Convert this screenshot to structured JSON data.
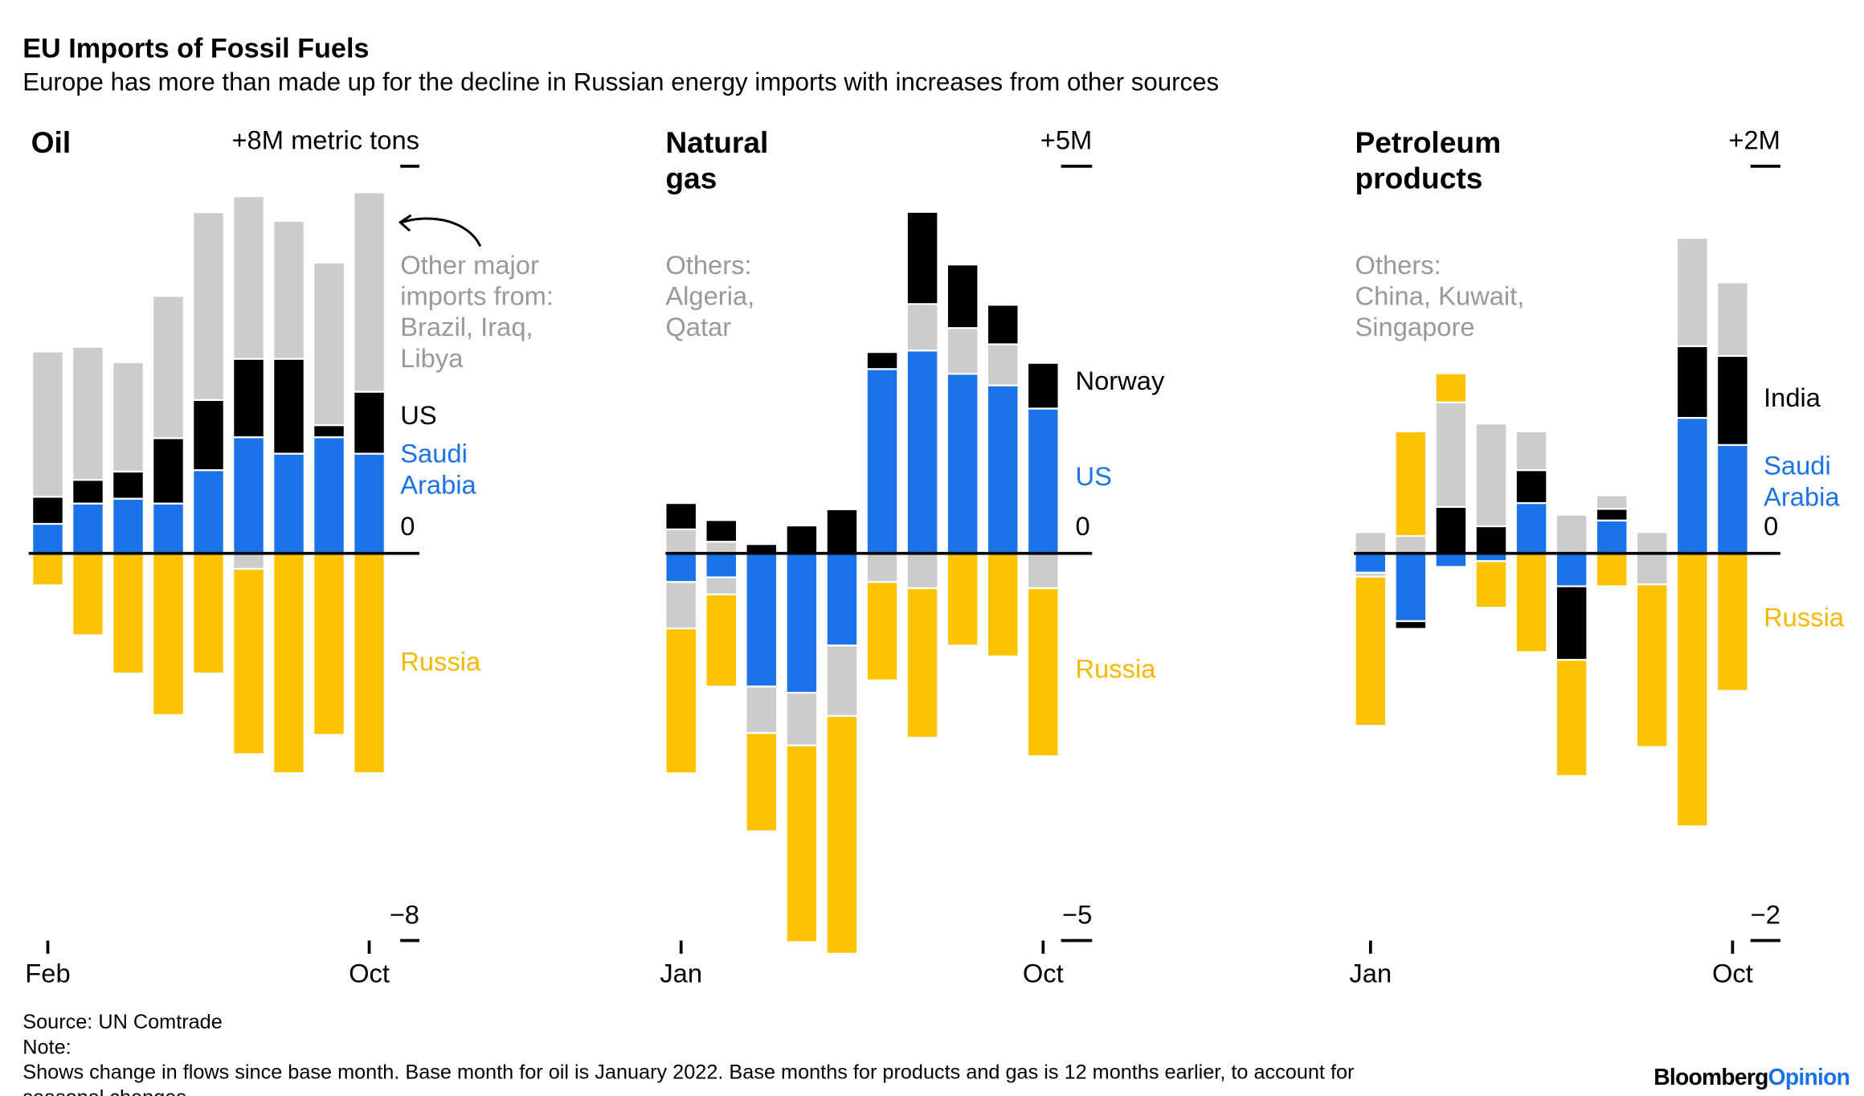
{
  "title": "EU Imports of Fossil Fuels",
  "subtitle": "Europe has more than made up for the decline in Russian energy imports with increases from other sources",
  "source": "Source: UN Comtrade",
  "note": "Note: Shows change in flows since base month. Base month for oil is January 2022. Base months for products and gas is 12 months earlier, to account for seasonal changes.",
  "logo": {
    "first": "Bloomberg",
    "second": "Opinion"
  },
  "chart_data": [
    {
      "type": "bar",
      "stacked": true,
      "title": "Oil",
      "categories": [
        "Feb",
        null,
        null,
        null,
        null,
        null,
        null,
        null,
        "Oct"
      ],
      "ylim": [
        -8,
        8
      ],
      "yticks": [
        {
          "value": 8,
          "label": "+8M metric tons"
        },
        0,
        {
          "value": -8,
          "label": "−8"
        }
      ],
      "series": [
        {
          "name": "Saudi Arabia",
          "color": "#1a73e8",
          "values": [
            0.61,
            1.03,
            1.13,
            1.03,
            1.72,
            2.4,
            2.06,
            2.4,
            2.06
          ]
        },
        {
          "name": "US",
          "color": "#000000",
          "values": [
            0.56,
            0.49,
            0.56,
            1.35,
            1.45,
            1.62,
            1.96,
            0.25,
            1.28
          ]
        },
        {
          "name": "Other major imports from: Brazil, Iraq, Libya",
          "color": "#cccccc",
          "values": [
            3.0,
            2.75,
            2.26,
            2.94,
            3.88,
            3.36,
            2.85,
            3.36,
            4.12
          ]
        },
        {
          "color": "#cccccc",
          "values": [
            0,
            0,
            0,
            0,
            0,
            -0.32,
            0,
            0,
            0
          ]
        },
        {
          "name": "Russia",
          "color": "#fdc300",
          "values": [
            -0.66,
            -1.69,
            -2.48,
            -3.34,
            -2.48,
            -3.83,
            -4.54,
            -3.75,
            -4.54
          ]
        }
      ]
    },
    {
      "type": "bar",
      "stacked": true,
      "title": "Natural gas",
      "categories": [
        "Jan",
        null,
        null,
        null,
        null,
        null,
        null,
        null,
        null,
        "Oct"
      ],
      "ylim": [
        -5,
        5
      ],
      "yticks": [
        {
          "value": 5,
          "label": "+5M"
        },
        0,
        {
          "value": -5,
          "label": "−5"
        }
      ],
      "series": [
        {
          "name": "US",
          "color": "#1a73e8",
          "values": [
            -0.37,
            -0.31,
            -1.72,
            -1.8,
            -1.19,
            2.38,
            2.62,
            2.32,
            2.17,
            1.87
          ]
        },
        {
          "name": "Others: Algeria, Qatar",
          "color": "#cccccc",
          "values": [
            0.31,
            0.15,
            -0.6,
            -0.68,
            -0.91,
            -0.37,
            0.6,
            0.59,
            0.53,
            -0.45
          ]
        },
        {
          "color": "#cccccc",
          "values": [
            -0.6,
            -0.22,
            0,
            0,
            0,
            0,
            -0.45,
            0,
            0,
            0
          ]
        },
        {
          "name": "Norway",
          "color": "#000000",
          "values": [
            0.34,
            0.28,
            0.12,
            0.36,
            0.57,
            0.22,
            1.19,
            0.82,
            0.51,
            0.59
          ]
        },
        {
          "name": "Russia",
          "color": "#fdc300",
          "values": [
            -1.87,
            -1.19,
            -1.27,
            -2.54,
            -3.07,
            -1.27,
            -1.93,
            -1.19,
            -1.33,
            -2.17
          ]
        }
      ]
    },
    {
      "type": "bar",
      "stacked": true,
      "title": "Petroleum products",
      "categories": [
        "Jan",
        null,
        null,
        null,
        null,
        null,
        null,
        null,
        null,
        "Oct"
      ],
      "ylim": [
        -2,
        2
      ],
      "yticks": [
        {
          "value": 2,
          "label": "+2M"
        },
        0,
        {
          "value": -2,
          "label": "−2"
        }
      ],
      "series": [
        {
          "name": "Saudi Arabia",
          "color": "#1a73e8",
          "values": [
            -0.1,
            -0.35,
            -0.07,
            -0.04,
            0.26,
            -0.17,
            0.17,
            0,
            0.7,
            0.56
          ]
        },
        {
          "name": "India",
          "color": "#000000",
          "values": [
            0,
            -0.04,
            0.24,
            0.14,
            0.17,
            -0.38,
            0.06,
            0,
            0.37,
            0.46
          ]
        },
        {
          "name": "Others: China, Kuwait, Singapore",
          "color": "#cccccc",
          "values": [
            0.11,
            0.09,
            0.54,
            0.53,
            0.2,
            0.2,
            0.07,
            0.11,
            0.56,
            0.38
          ]
        },
        {
          "color": "#cccccc",
          "values": [
            -0.02,
            0,
            0,
            0,
            0,
            0,
            0,
            -0.16,
            0,
            0
          ]
        },
        {
          "name": "Russia",
          "color": "#fdc300",
          "values": [
            -0.77,
            0.54,
            0.15,
            -0.24,
            -0.51,
            -0.6,
            -0.17,
            -0.84,
            -1.41,
            -0.71
          ]
        }
      ]
    }
  ]
}
